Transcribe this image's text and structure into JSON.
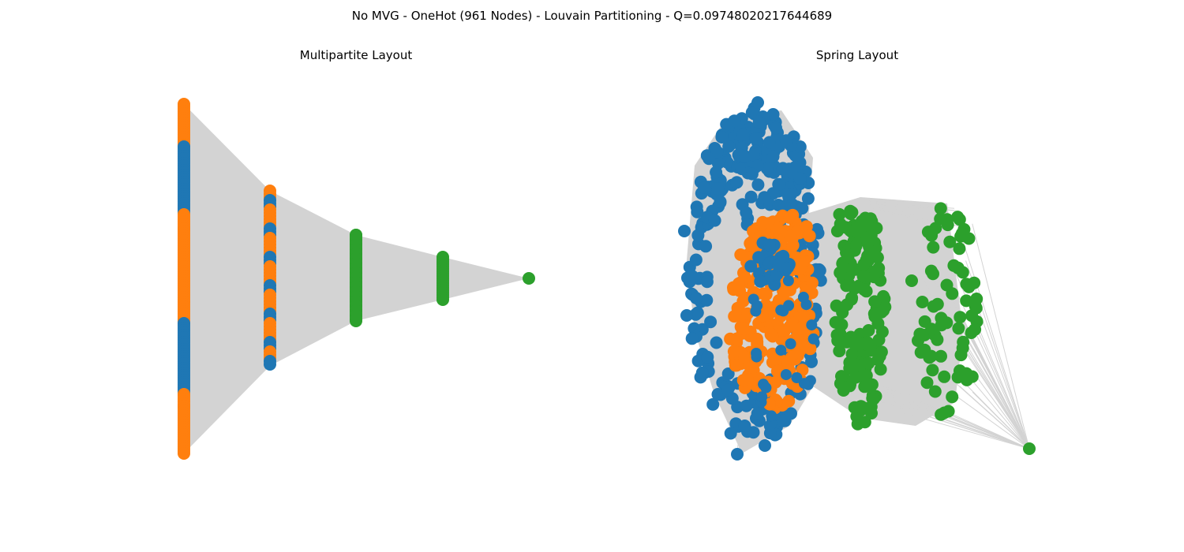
{
  "figure": {
    "suptitle": "No MVG - OneHot (961 Nodes) - Louvain Partitioning - Q=0.09748020217644689"
  },
  "panels": [
    {
      "title": "Multipartite Layout"
    },
    {
      "title": "Spring Layout"
    }
  ],
  "colors": {
    "community_0": "#1f77b4",
    "community_1": "#ff7f0e",
    "community_2": "#2ca02c",
    "edge": "#d3d3d3"
  },
  "graph": {
    "node_count": 961,
    "community_count": 3,
    "multipartite_layers": 5
  }
}
